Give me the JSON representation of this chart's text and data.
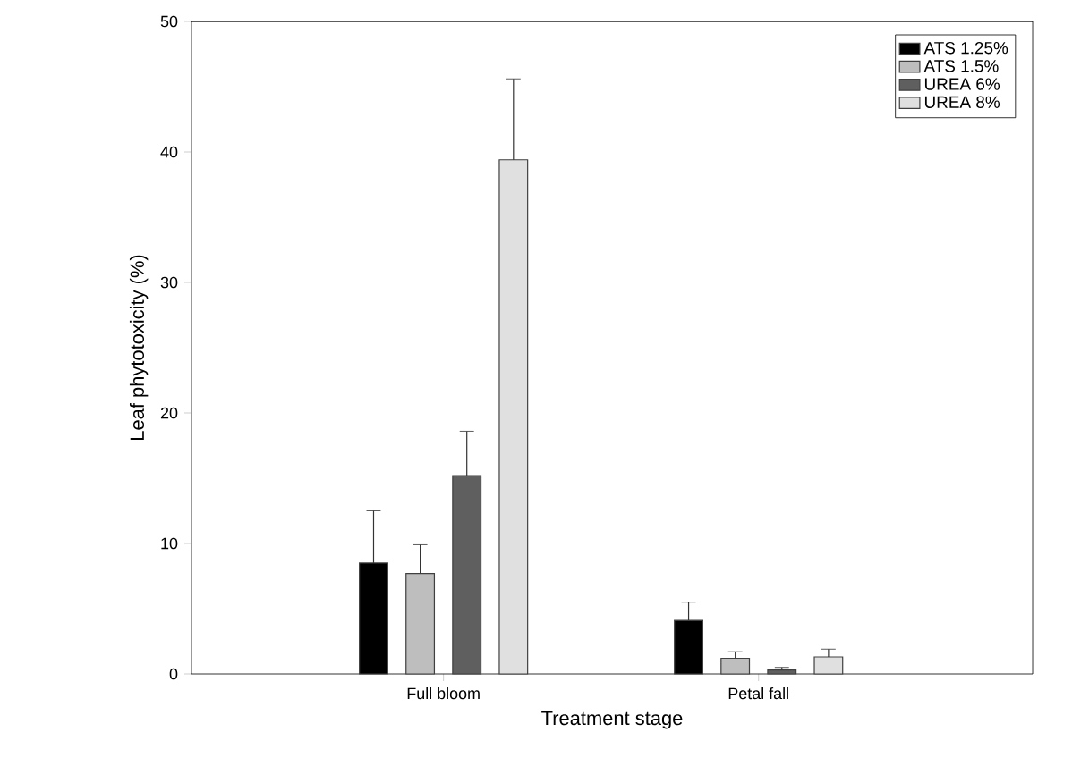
{
  "chart_data": {
    "type": "bar",
    "xlabel": "Treatment stage",
    "ylabel": "Leaf phytotoxicity (%)",
    "categories": [
      "Full bloom",
      "Petal fall"
    ],
    "series": [
      {
        "name": "ATS 1.25%",
        "color": "#000000",
        "values": [
          8.5,
          4.1
        ],
        "errors": [
          4.0,
          1.4
        ]
      },
      {
        "name": "ATS 1.5%",
        "color": "#bebebe",
        "values": [
          7.7,
          1.2
        ],
        "errors": [
          2.2,
          0.5
        ]
      },
      {
        "name": "UREA 6%",
        "color": "#5f5f5f",
        "values": [
          15.2,
          0.3
        ],
        "errors": [
          3.4,
          0.2
        ]
      },
      {
        "name": "UREA 8%",
        "color": "#e0e0e0",
        "values": [
          39.4,
          1.3
        ],
        "errors": [
          6.2,
          0.6
        ]
      }
    ],
    "ylim": [
      0,
      50
    ],
    "yticks": [
      0,
      10,
      20,
      30,
      40,
      50
    ],
    "legend": "top right"
  }
}
